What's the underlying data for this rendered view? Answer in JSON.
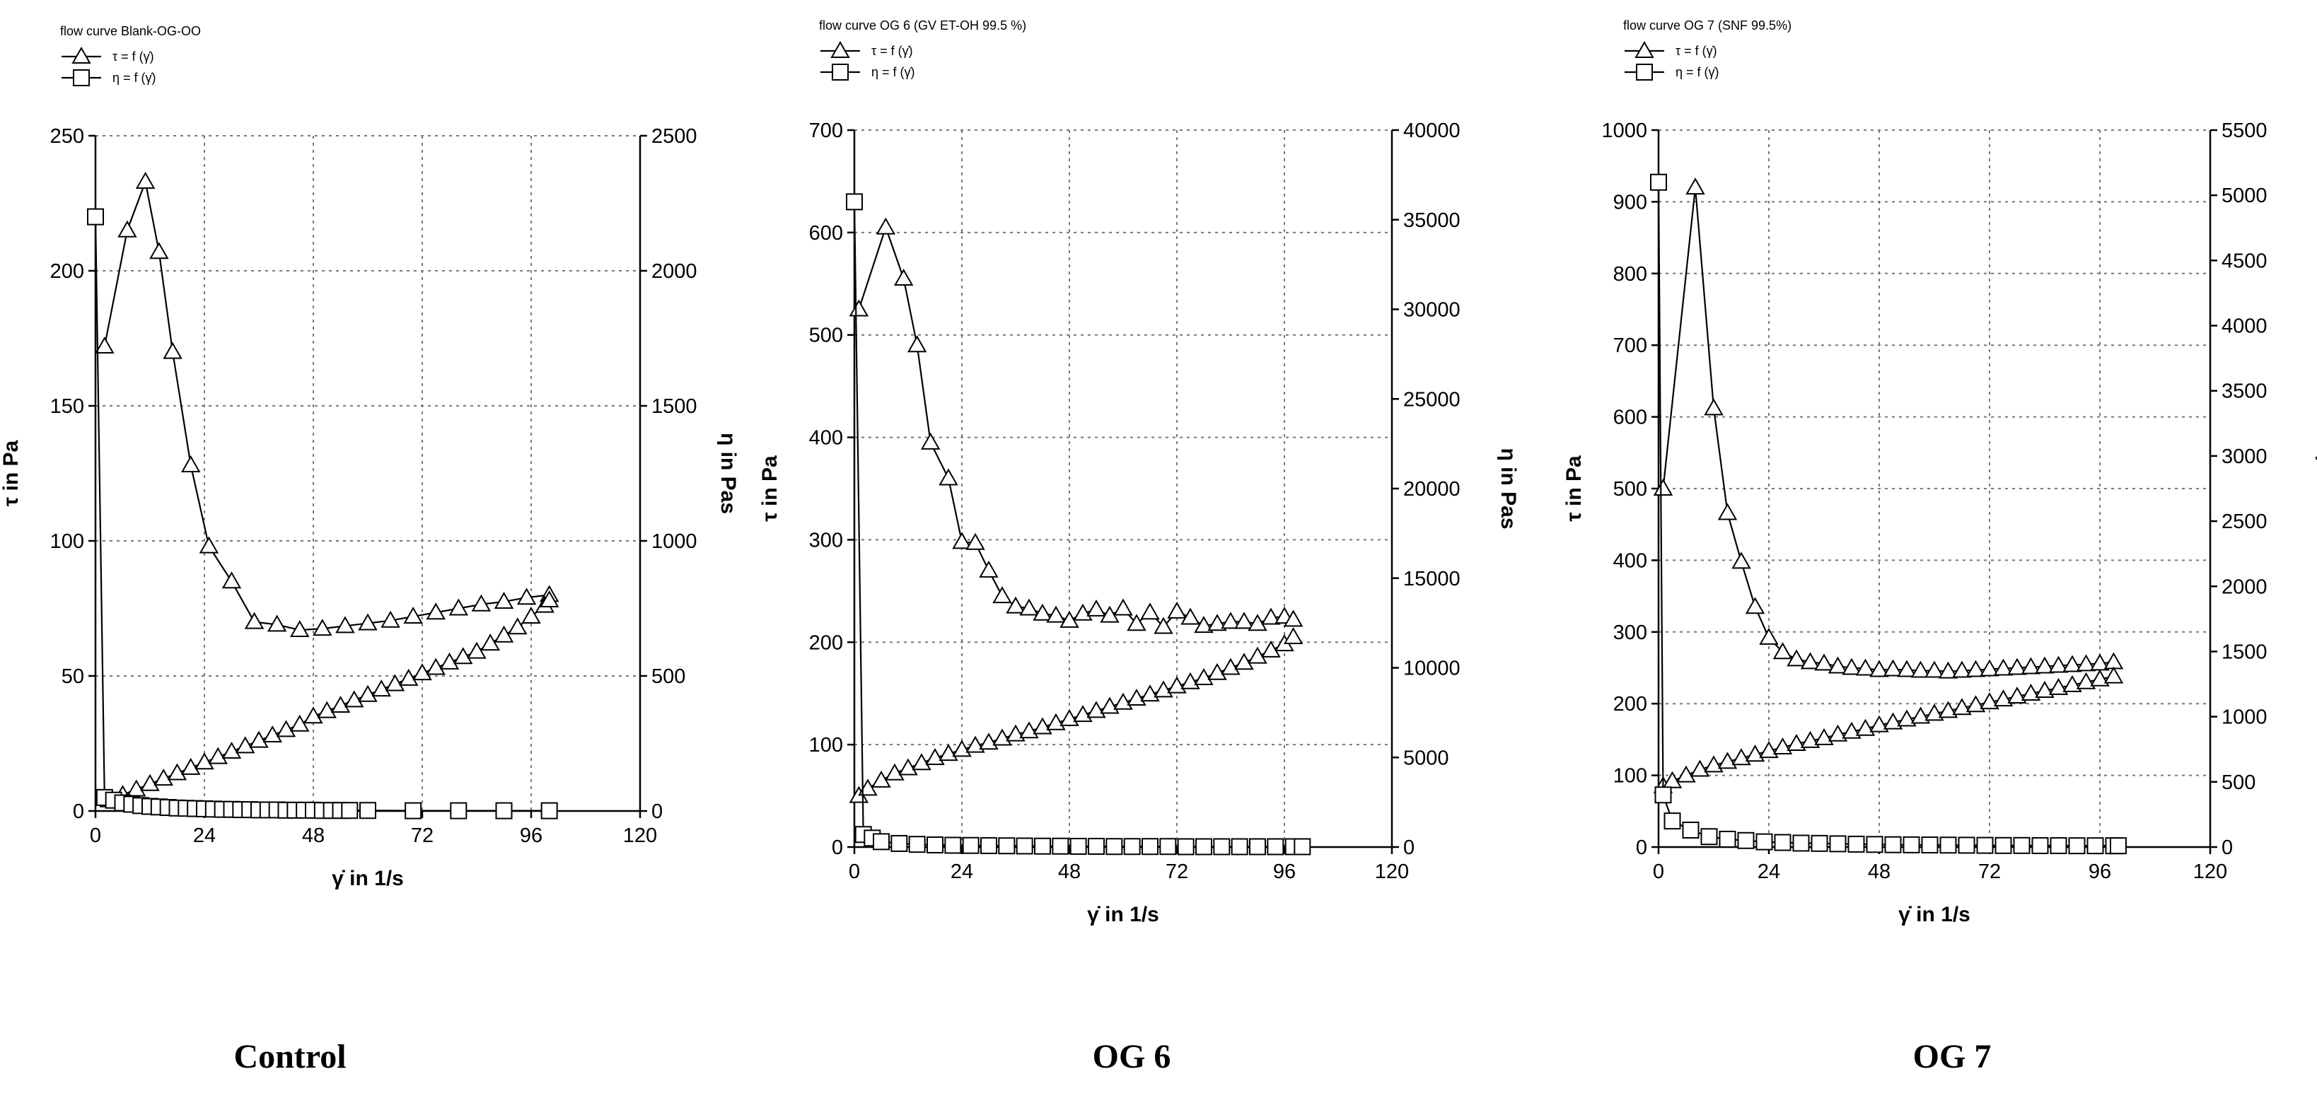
{
  "chart_data": [
    {
      "type": "line",
      "title": "flow curve Blank-OG-OO",
      "caption": "Control",
      "legend": [
        "τ = f (γ̇)",
        "η = f (γ̇)"
      ],
      "xlabel": "γ̇ in 1/s",
      "ylabel_left": "τ in Pa",
      "ylabel_right": "η in Pas",
      "xlim": [
        0,
        120
      ],
      "xticks": [
        0,
        24,
        48,
        72,
        96,
        120
      ],
      "ylim_left": [
        0,
        250
      ],
      "yticks_left": [
        0,
        50,
        100,
        150,
        200,
        250
      ],
      "ylim_right": [
        0,
        2500
      ],
      "yticks_right": [
        0,
        500,
        1000,
        1500,
        2000,
        2500
      ],
      "series": [
        {
          "axis": "left",
          "marker": "triangle",
          "x": [
            2,
            7,
            11,
            14,
            17,
            21,
            25,
            30,
            35,
            40,
            45,
            50,
            55,
            60,
            65,
            70,
            75,
            80,
            85,
            90,
            95,
            100
          ],
          "y": [
            172,
            215,
            233,
            207,
            170,
            128,
            98,
            85,
            70,
            69,
            67,
            67.5,
            68.5,
            69.5,
            70.5,
            72,
            73.5,
            75,
            76.5,
            77.5,
            79,
            80
          ]
        },
        {
          "axis": "left",
          "marker": "triangle",
          "x": [
            3,
            6,
            9,
            12,
            15,
            18,
            21,
            24,
            27,
            30,
            33,
            36,
            39,
            42,
            45,
            48,
            51,
            54,
            57,
            60,
            63,
            66,
            69,
            72,
            75,
            78,
            81,
            84,
            87,
            90,
            93,
            96,
            99,
            100
          ],
          "y": [
            4,
            6,
            8,
            10,
            12,
            14,
            16,
            18,
            20,
            22,
            24,
            26,
            28,
            30,
            32,
            35,
            37,
            39,
            41,
            43,
            45,
            47,
            49,
            51,
            53,
            55,
            57,
            59,
            62,
            65,
            68,
            72,
            76,
            78
          ]
        },
        {
          "axis": "right",
          "marker": "square",
          "x": [
            0,
            2,
            4,
            6,
            8,
            10,
            12,
            14,
            16,
            18,
            20,
            22,
            24,
            26,
            28,
            30,
            32,
            34,
            36,
            38,
            40,
            42,
            44,
            46,
            48,
            50,
            52,
            54,
            56,
            60,
            70,
            80,
            90,
            100
          ],
          "y": [
            2200,
            50,
            40,
            30,
            25,
            20,
            17,
            15,
            13,
            11,
            10,
            9,
            8,
            7,
            6,
            6,
            5,
            5,
            4,
            4,
            4,
            3,
            3,
            3,
            3,
            2,
            2,
            2,
            2,
            2,
            1,
            1,
            1,
            1
          ]
        }
      ]
    },
    {
      "type": "line",
      "title": "flow curve OG 6 (GV ET-OH 99.5 %)",
      "caption": "OG 6",
      "legend": [
        "τ = f (γ̇)",
        "η = f (γ̇)"
      ],
      "xlabel": "γ̇ in 1/s",
      "ylabel_left": "τ in Pa",
      "ylabel_right": "η in Pas",
      "xlim": [
        0,
        120
      ],
      "xticks": [
        0,
        24,
        48,
        72,
        96,
        120
      ],
      "ylim_left": [
        0,
        700
      ],
      "yticks_left": [
        0,
        100,
        200,
        300,
        400,
        500,
        600,
        700
      ],
      "ylim_right": [
        0,
        40000
      ],
      "yticks_right": [
        0,
        5000,
        10000,
        15000,
        20000,
        25000,
        30000,
        35000,
        40000
      ],
      "series": [
        {
          "axis": "left",
          "marker": "triangle",
          "x": [
            1,
            7,
            11,
            14,
            17,
            21,
            24,
            27,
            30,
            33,
            36,
            39,
            42,
            45,
            48,
            51,
            54,
            57,
            60,
            63,
            66,
            69,
            72,
            75,
            78,
            81,
            84,
            87,
            90,
            93,
            96,
            98
          ],
          "y": [
            525,
            605,
            555,
            490,
            395,
            360,
            298,
            297,
            270,
            245,
            235,
            233,
            228,
            226,
            221,
            228,
            232,
            226,
            233,
            218,
            229,
            215,
            230,
            224,
            216,
            218,
            220,
            220,
            218,
            224,
            225,
            222
          ]
        },
        {
          "axis": "left",
          "marker": "triangle",
          "x": [
            1,
            3,
            6,
            9,
            12,
            15,
            18,
            21,
            24,
            27,
            30,
            33,
            36,
            39,
            42,
            45,
            48,
            51,
            54,
            57,
            60,
            63,
            66,
            69,
            72,
            75,
            78,
            81,
            84,
            87,
            90,
            93,
            96,
            98
          ],
          "y": [
            50,
            57,
            65,
            72,
            77,
            82,
            87,
            91,
            95,
            99,
            102,
            106,
            110,
            113,
            117,
            121,
            125,
            129,
            133,
            137,
            141,
            145,
            149,
            153,
            157,
            161,
            165,
            170,
            175,
            180,
            186,
            192,
            198,
            205
          ]
        },
        {
          "axis": "right",
          "marker": "square",
          "x": [
            0,
            2,
            4,
            6,
            10,
            14,
            18,
            22,
            26,
            30,
            34,
            38,
            42,
            46,
            50,
            54,
            58,
            62,
            66,
            70,
            74,
            78,
            82,
            86,
            90,
            94,
            98,
            100
          ],
          "y": [
            36000,
            700,
            500,
            300,
            200,
            150,
            120,
            100,
            90,
            80,
            70,
            60,
            50,
            50,
            40,
            40,
            30,
            30,
            30,
            30,
            20,
            20,
            20,
            20,
            20,
            20,
            20,
            20
          ]
        }
      ]
    },
    {
      "type": "line",
      "title": "flow curve OG 7 (SNF 99.5%)",
      "caption": "OG 7",
      "legend": [
        "τ = f (γ̇)",
        "η = f (γ̇)"
      ],
      "xlabel": "γ̇ in 1/s",
      "ylabel_left": "τ in Pa",
      "ylabel_right": "η in Pas",
      "xlim": [
        0,
        120
      ],
      "xticks": [
        0,
        24,
        48,
        72,
        96,
        120
      ],
      "ylim_left": [
        0,
        1000
      ],
      "yticks_left": [
        0,
        100,
        200,
        300,
        400,
        500,
        600,
        700,
        800,
        900,
        1000
      ],
      "ylim_right": [
        0,
        5500
      ],
      "yticks_right": [
        0,
        500,
        1000,
        1500,
        2000,
        2500,
        3000,
        3500,
        4000,
        4500,
        5000,
        5500
      ],
      "series": [
        {
          "axis": "left",
          "marker": "triangle",
          "x": [
            1,
            8,
            12,
            15,
            18,
            21,
            24,
            27,
            30,
            33,
            36,
            39,
            42,
            45,
            48,
            51,
            54,
            57,
            60,
            63,
            66,
            69,
            72,
            75,
            78,
            81,
            84,
            87,
            90,
            93,
            96,
            99
          ],
          "y": [
            500,
            920,
            612,
            466,
            398,
            335,
            292,
            272,
            262,
            258,
            256,
            252,
            250,
            249,
            247,
            248,
            247,
            246,
            246,
            245,
            246,
            247,
            248,
            249,
            250,
            251,
            252,
            253,
            254,
            255,
            256,
            258
          ]
        },
        {
          "axis": "left",
          "marker": "triangle",
          "x": [
            1,
            3,
            6,
            9,
            12,
            15,
            18,
            21,
            24,
            27,
            30,
            33,
            36,
            39,
            42,
            45,
            48,
            51,
            54,
            57,
            60,
            63,
            66,
            69,
            72,
            75,
            78,
            81,
            84,
            87,
            90,
            93,
            96,
            99
          ],
          "y": [
            85,
            92,
            100,
            108,
            114,
            119,
            124,
            129,
            134,
            139,
            144,
            148,
            152,
            157,
            161,
            165,
            170,
            174,
            178,
            182,
            186,
            190,
            194,
            198,
            202,
            206,
            210,
            214,
            218,
            222,
            226,
            230,
            234,
            238
          ]
        },
        {
          "axis": "right",
          "marker": "square",
          "x": [
            0,
            1,
            3,
            7,
            11,
            15,
            19,
            23,
            27,
            31,
            35,
            39,
            43,
            47,
            51,
            55,
            59,
            63,
            67,
            71,
            75,
            79,
            83,
            87,
            91,
            95,
            99,
            100
          ],
          "y": [
            5100,
            400,
            200,
            130,
            80,
            60,
            50,
            40,
            35,
            30,
            28,
            25,
            22,
            20,
            18,
            17,
            16,
            15,
            14,
            13,
            12,
            12,
            11,
            11,
            10,
            10,
            10,
            10
          ]
        }
      ]
    }
  ]
}
